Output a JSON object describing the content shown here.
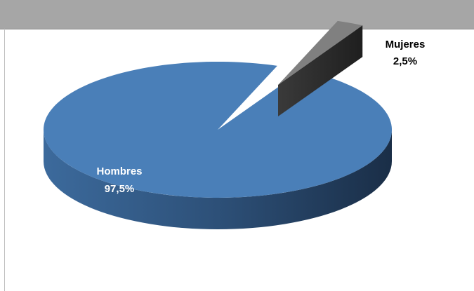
{
  "chart_data": {
    "type": "pie",
    "style": "3d-exploded",
    "slices": [
      {
        "name": "Hombres",
        "value": 97.5,
        "label": "97,5%",
        "color": "#4a7fb8"
      },
      {
        "name": "Mujeres",
        "value": 2.5,
        "label": "2,5%",
        "color": "#808080"
      }
    ],
    "legend": "none",
    "label_colors": {
      "inside": "#ffffff",
      "outside": "#000000"
    },
    "header_color": "#a6a6a6"
  }
}
